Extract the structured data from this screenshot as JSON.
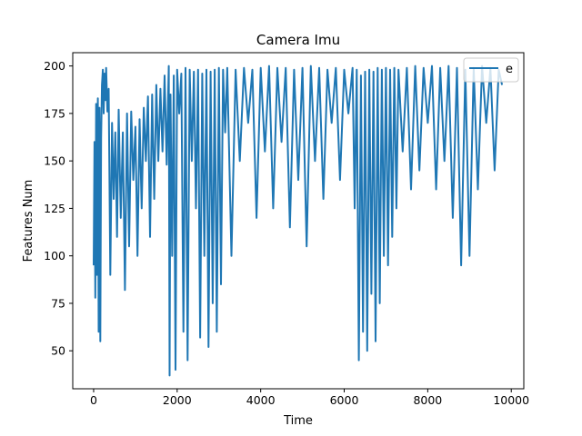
{
  "chart_data": {
    "type": "line",
    "title": "Camera Imu",
    "xlabel": "Time",
    "ylabel": "Features Num",
    "xlim": [
      -500,
      10300
    ],
    "ylim": [
      30,
      207
    ],
    "xticks": [
      0,
      2000,
      4000,
      6000,
      8000,
      10000
    ],
    "yticks": [
      50,
      75,
      100,
      125,
      150,
      175,
      200
    ],
    "grid": false,
    "legend_position": "top-right",
    "line_color": "#1f77b4",
    "series": [
      {
        "name": "e",
        "x": [
          0,
          20,
          40,
          60,
          80,
          100,
          120,
          140,
          160,
          180,
          200,
          220,
          240,
          260,
          280,
          300,
          330,
          360,
          400,
          440,
          480,
          520,
          560,
          600,
          650,
          700,
          750,
          800,
          850,
          900,
          950,
          1000,
          1050,
          1100,
          1150,
          1200,
          1250,
          1300,
          1350,
          1400,
          1450,
          1500,
          1550,
          1600,
          1650,
          1700,
          1750,
          1800,
          1820,
          1840,
          1880,
          1920,
          1960,
          2000,
          2050,
          2100,
          2150,
          2200,
          2250,
          2300,
          2350,
          2400,
          2450,
          2500,
          2550,
          2600,
          2650,
          2700,
          2750,
          2800,
          2850,
          2900,
          2950,
          3000,
          3050,
          3100,
          3150,
          3200,
          3300,
          3400,
          3500,
          3600,
          3700,
          3800,
          3900,
          4000,
          4100,
          4200,
          4300,
          4400,
          4500,
          4600,
          4700,
          4800,
          4900,
          5000,
          5100,
          5200,
          5300,
          5400,
          5500,
          5600,
          5700,
          5800,
          5900,
          6000,
          6100,
          6200,
          6250,
          6300,
          6350,
          6400,
          6450,
          6500,
          6550,
          6600,
          6650,
          6700,
          6750,
          6800,
          6850,
          6900,
          6950,
          7000,
          7050,
          7100,
          7150,
          7200,
          7250,
          7300,
          7400,
          7500,
          7600,
          7700,
          7800,
          7900,
          8000,
          8100,
          8200,
          8300,
          8400,
          8500,
          8600,
          8700,
          8800,
          8900,
          9000,
          9100,
          9200,
          9300,
          9400,
          9500,
          9600,
          9700,
          9780
        ],
        "y": [
          95,
          160,
          78,
          180,
          90,
          183,
          60,
          178,
          55,
          162,
          190,
          198,
          175,
          196,
          182,
          199,
          176,
          188,
          90,
          170,
          130,
          165,
          110,
          177,
          120,
          165,
          82,
          175,
          105,
          176,
          140,
          168,
          100,
          172,
          125,
          178,
          150,
          184,
          110,
          185,
          130,
          190,
          150,
          188,
          155,
          195,
          148,
          200,
          37,
          185,
          100,
          195,
          40,
          198,
          175,
          196,
          60,
          199,
          45,
          198,
          150,
          197,
          125,
          198,
          57,
          196,
          100,
          198,
          52,
          197,
          75,
          198,
          60,
          199,
          85,
          198,
          165,
          199,
          100,
          198,
          150,
          199,
          170,
          198,
          120,
          199,
          155,
          200,
          125,
          199,
          160,
          199,
          115,
          198,
          140,
          199,
          105,
          200,
          150,
          199,
          130,
          198,
          170,
          199,
          140,
          198,
          175,
          199,
          125,
          198,
          45,
          195,
          60,
          197,
          50,
          198,
          80,
          197,
          55,
          199,
          75,
          198,
          100,
          199,
          95,
          198,
          110,
          199,
          125,
          198,
          155,
          199,
          135,
          200,
          145,
          199,
          170,
          200,
          135,
          199,
          150,
          200,
          120,
          199,
          95,
          198,
          100,
          199,
          135,
          200,
          170,
          199,
          145,
          198,
          190
        ]
      }
    ]
  }
}
